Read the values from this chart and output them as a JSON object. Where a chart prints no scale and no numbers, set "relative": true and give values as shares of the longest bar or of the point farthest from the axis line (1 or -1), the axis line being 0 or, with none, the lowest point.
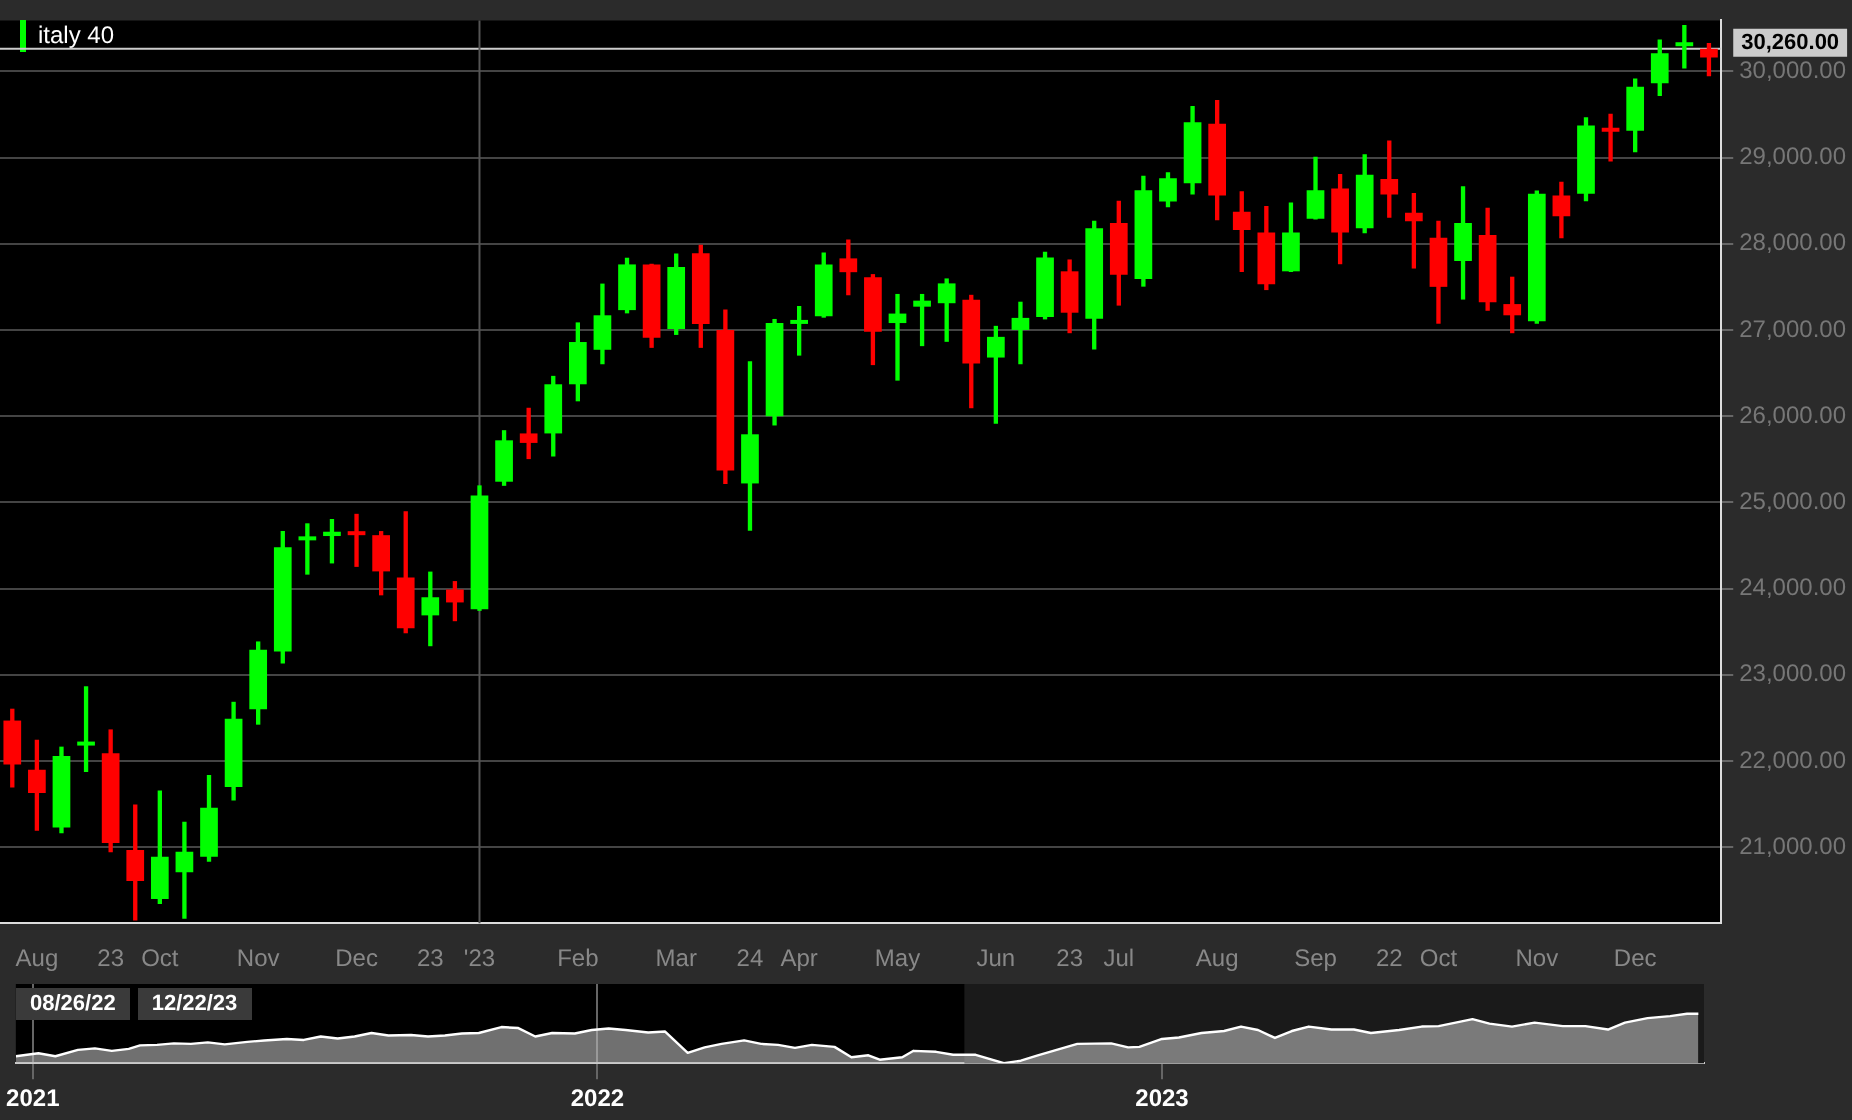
{
  "chart_data": [
    {
      "type": "candlestick",
      "categories": [
        null,
        "Aug",
        null,
        null,
        "23",
        null,
        "Oct",
        null,
        null,
        null,
        "Nov",
        null,
        null,
        null,
        "Dec",
        null,
        null,
        "23",
        null,
        "'23",
        null,
        null,
        null,
        "Feb",
        null,
        null,
        null,
        "Mar",
        null,
        null,
        "24",
        null,
        "Apr",
        null,
        null,
        null,
        "May",
        null,
        null,
        null,
        "Jun",
        null,
        null,
        "23",
        null,
        "Jul",
        null,
        null,
        null,
        "Aug",
        null,
        null,
        null,
        "Sep",
        null,
        null,
        "22",
        null,
        "Oct",
        null,
        null,
        null,
        "Nov",
        null,
        null,
        null,
        "Dec",
        null,
        null,
        null
      ],
      "series": [
        {
          "name": "italy 40",
          "color": "#00ff00",
          "colors": [
            "#ff0000",
            "#ff0000",
            "#00ff00",
            "#00ff00",
            "#ff0000",
            "#ff0000",
            "#00ff00",
            "#00ff00",
            "#00ff00",
            "#00ff00",
            "#00ff00",
            "#00ff00",
            "#00ff00",
            "#00ff00",
            "#ff0000",
            "#ff0000",
            "#ff0000",
            "#00ff00",
            "#ff0000",
            "#00ff00",
            "#00ff00",
            "#ff0000",
            "#00ff00",
            "#00ff00",
            "#00ff00",
            "#00ff00",
            "#ff0000",
            "#00ff00",
            "#ff0000",
            "#ff0000",
            "#00ff00",
            "#00ff00",
            "#00ff00",
            "#00ff00",
            "#ff0000",
            "#ff0000",
            "#00ff00",
            "#00ff00",
            "#00ff00",
            "#ff0000",
            "#00ff00",
            "#00ff00",
            "#00ff00",
            "#ff0000",
            "#00ff00",
            "#ff0000",
            "#00ff00",
            "#00ff00",
            "#00ff00",
            "#ff0000",
            "#ff0000",
            "#ff0000",
            "#00ff00",
            "#00ff00",
            "#ff0000",
            "#00ff00",
            "#ff0000",
            "#ff0000",
            "#ff0000",
            "#00ff00",
            "#ff0000",
            "#ff0000",
            "#00ff00",
            "#ff0000",
            "#00ff00",
            "#ff0000",
            "#00ff00",
            "#00ff00",
            "#00ff00",
            "#ff0000"
          ],
          "ohlc": [
            [
              22470,
              22600,
              21700,
              21960
            ],
            [
              21900,
              22240,
              21200,
              21630
            ],
            [
              21230,
              22160,
              21170,
              22060
            ],
            [
              22180,
              22860,
              21880,
              22200
            ],
            [
              22090,
              22360,
              20950,
              21050
            ],
            [
              20970,
              21490,
              20160,
              20610
            ],
            [
              20400,
              21650,
              20350,
              20890
            ],
            [
              20710,
              21290,
              20180,
              20950
            ],
            [
              20890,
              21830,
              20840,
              21460
            ],
            [
              21700,
              22680,
              21550,
              22490
            ],
            [
              22600,
              23380,
              22430,
              23290
            ],
            [
              23270,
              24660,
              23140,
              24480
            ],
            [
              24560,
              24750,
              24170,
              24580
            ],
            [
              24610,
              24800,
              24300,
              24660
            ],
            [
              24640,
              24860,
              24260,
              24620
            ],
            [
              24620,
              24660,
              23930,
              24200
            ],
            [
              24130,
              24890,
              23490,
              23540
            ],
            [
              23690,
              24190,
              23340,
              23900
            ],
            [
              23990,
              24080,
              23630,
              23840
            ],
            [
              23760,
              25190,
              23750,
              25080
            ],
            [
              25240,
              25830,
              25200,
              25720
            ],
            [
              25800,
              26090,
              25510,
              25690
            ],
            [
              25800,
              26460,
              25540,
              26370
            ],
            [
              26370,
              27080,
              26180,
              26860
            ],
            [
              26770,
              27530,
              26610,
              27170
            ],
            [
              27230,
              27830,
              27200,
              27760
            ],
            [
              27760,
              27760,
              26800,
              26910
            ],
            [
              27010,
              27880,
              26950,
              27730
            ],
            [
              27890,
              27980,
              26800,
              27070
            ],
            [
              27000,
              27230,
              25220,
              25370
            ],
            [
              25220,
              26630,
              24680,
              25790
            ],
            [
              26000,
              27120,
              25900,
              27080
            ],
            [
              27070,
              27270,
              26710,
              27090
            ],
            [
              27160,
              27890,
              27150,
              27760
            ],
            [
              27830,
              28040,
              27410,
              27670
            ],
            [
              27610,
              27640,
              26600,
              26980
            ],
            [
              27080,
              27410,
              26420,
              27190
            ],
            [
              27270,
              27410,
              26820,
              27340
            ],
            [
              27310,
              27590,
              26870,
              27540
            ],
            [
              27350,
              27400,
              26100,
              26610
            ],
            [
              26680,
              27040,
              25920,
              26920
            ],
            [
              27000,
              27320,
              26610,
              27140
            ],
            [
              27150,
              27900,
              27130,
              27840
            ],
            [
              27680,
              27810,
              26970,
              27200
            ],
            [
              27130,
              28260,
              26780,
              28180
            ],
            [
              28240,
              28490,
              27290,
              27640
            ],
            [
              27590,
              28780,
              27510,
              28620
            ],
            [
              28490,
              28820,
              28430,
              28760
            ],
            [
              28700,
              29590,
              28580,
              29410
            ],
            [
              29390,
              29660,
              28280,
              28560
            ],
            [
              28370,
              28600,
              27680,
              28160
            ],
            [
              28130,
              28430,
              27470,
              27530
            ],
            [
              27680,
              28470,
              27680,
              28130
            ],
            [
              28290,
              29000,
              28290,
              28620
            ],
            [
              28640,
              28800,
              27770,
              28130
            ],
            [
              28180,
              29030,
              28130,
              28800
            ],
            [
              28750,
              29190,
              28310,
              28570
            ],
            [
              28360,
              28580,
              27720,
              28260
            ],
            [
              28070,
              28260,
              27080,
              27500
            ],
            [
              27800,
              28660,
              27360,
              28240
            ],
            [
              28100,
              28410,
              27230,
              27320
            ],
            [
              27300,
              27610,
              26970,
              27170
            ],
            [
              27100,
              28610,
              27080,
              28580
            ],
            [
              28560,
              28710,
              28070,
              28320
            ],
            [
              28580,
              29460,
              28500,
              29370
            ],
            [
              29320,
              29500,
              28960,
              29300
            ],
            [
              29310,
              29910,
              29070,
              29820
            ],
            [
              29860,
              30360,
              29720,
              30210
            ],
            [
              30290,
              30530,
              30040,
              30300
            ],
            [
              30260,
              30320,
              29950,
              30160
            ]
          ]
        }
      ],
      "ylim": [
        20120,
        30590
      ],
      "yticks": [
        {
          "value": 21000,
          "label": "21,000.00"
        },
        {
          "value": 22000,
          "label": "22,000.00"
        },
        {
          "value": 23000,
          "label": "23,000.00"
        },
        {
          "value": 24000,
          "label": "24,000.00"
        },
        {
          "value": 25000,
          "label": "25,000.00"
        },
        {
          "value": 26000,
          "label": "26,000.00"
        },
        {
          "value": 27000,
          "label": "27,000.00"
        },
        {
          "value": 28000,
          "label": "28,000.00"
        },
        {
          "value": 29000,
          "label": "29,000.00"
        },
        {
          "value": 30000,
          "label": "30,000.00"
        }
      ],
      "grid": "y",
      "legend": "top left",
      "ref_lines": [
        {
          "axis": "y",
          "value": 30260,
          "label": "30,260.00",
          "color": "#cccccc"
        },
        {
          "axis": "x",
          "value": "'23",
          "color": "#555555"
        }
      ]
    },
    {
      "type": "area",
      "relative": true,
      "x": [
        2020.97,
        2021.01,
        2021.04,
        2021.08,
        2021.11,
        2021.14,
        2021.17,
        2021.19,
        2021.22,
        2021.25,
        2021.28,
        2021.31,
        2021.34,
        2021.38,
        2021.41,
        2021.45,
        2021.48,
        2021.51,
        2021.54,
        2021.57,
        2021.6,
        2021.63,
        2021.67,
        2021.7,
        2021.73,
        2021.76,
        2021.79,
        2021.83,
        2021.86,
        2021.89,
        2021.92,
        2021.96,
        2021.99,
        2022.02,
        2022.05,
        2022.09,
        2022.12,
        2022.16,
        2022.19,
        2022.22,
        2022.26,
        2022.29,
        2022.32,
        2022.35,
        2022.38,
        2022.42,
        2022.45,
        2022.48,
        2022.5,
        2022.54,
        2022.56,
        2022.6,
        2022.63,
        2022.67,
        2022.72,
        2022.75,
        2022.78,
        2022.85,
        2022.91,
        2022.94,
        2022.96,
        2023.0,
        2023.03,
        2023.07,
        2023.11,
        2023.14,
        2023.17,
        2023.2,
        2023.23,
        2023.26,
        2023.3,
        2023.34,
        2023.37,
        2023.42,
        2023.46,
        2023.49,
        2023.52,
        2023.55,
        2023.58,
        2023.62,
        2023.66,
        2023.71,
        2023.75,
        2023.79,
        2023.82,
        2023.86,
        2023.9,
        2023.93,
        2023.95
      ],
      "series": [
        {
          "color": "#bbbbbb",
          "values": [
            0.14,
            0.2,
            0.14,
            0.27,
            0.3,
            0.25,
            0.29,
            0.36,
            0.37,
            0.4,
            0.39,
            0.42,
            0.38,
            0.43,
            0.46,
            0.49,
            0.47,
            0.54,
            0.5,
            0.54,
            0.61,
            0.56,
            0.57,
            0.54,
            0.56,
            0.6,
            0.61,
            0.73,
            0.71,
            0.54,
            0.61,
            0.6,
            0.67,
            0.7,
            0.67,
            0.62,
            0.64,
            0.21,
            0.32,
            0.39,
            0.46,
            0.39,
            0.37,
            0.31,
            0.37,
            0.33,
            0.12,
            0.16,
            0.07,
            0.12,
            0.25,
            0.23,
            0.17,
            0.17,
            0,
            0.05,
            0.16,
            0.39,
            0.4,
            0.32,
            0.33,
            0.49,
            0.52,
            0.61,
            0.65,
            0.74,
            0.67,
            0.51,
            0.65,
            0.74,
            0.68,
            0.68,
            0.61,
            0.67,
            0.74,
            0.75,
            0.82,
            0.89,
            0.8,
            0.74,
            0.82,
            0.75,
            0.75,
            0.68,
            0.82,
            0.91,
            0.95,
            1,
            1
          ]
        }
      ],
      "xlim": [
        2020.97,
        2023.96
      ],
      "xticks": [
        2021,
        2022,
        2023
      ],
      "grid": "x",
      "bands": [
        {
          "axis": "x",
          "from": 2022.65,
          "to": 2023.96,
          "color": "#1a1a1a"
        }
      ],
      "annotations": [
        "08/26/22",
        "12/22/23"
      ]
    }
  ]
}
